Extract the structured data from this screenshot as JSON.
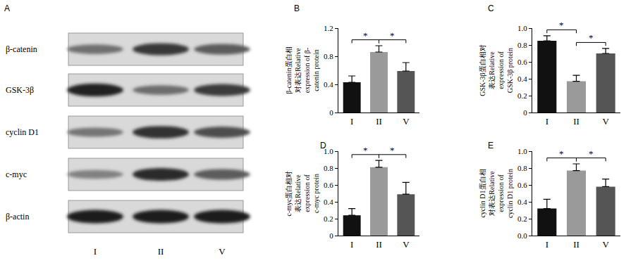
{
  "blot": {
    "title": "A",
    "rows": [
      "β-catenin",
      "GSK-3β",
      "cyclin D1",
      "c-myc",
      "β-actin"
    ],
    "lanes": [
      "I",
      "II",
      "V"
    ]
  },
  "chart_data": [
    {
      "type": "bar",
      "title": "B",
      "y_label": "β-catenin蛋白相\n对表达Relative\nexpression of β-\ncatenin protein",
      "categories": [
        "I",
        "II",
        "V"
      ],
      "values": [
        0.43,
        0.86,
        0.59
      ],
      "errors": [
        0.09,
        0.09,
        0.12
      ],
      "colors": [
        "#111111",
        "#9a9a9a",
        "#555555"
      ],
      "ylim": [
        0,
        1.2
      ],
      "yticks": [
        0,
        0.4,
        0.8,
        1.2
      ],
      "grid": false,
      "significance": [
        {
          "from": "I",
          "to": "II",
          "label": "*"
        },
        {
          "from": "II",
          "to": "V",
          "label": "*"
        }
      ]
    },
    {
      "type": "bar",
      "title": "C",
      "y_label": "GSK-3β蛋白相对\n表达Relative\nexpression of\nGSK-3β protein",
      "categories": [
        "I",
        "II",
        "V"
      ],
      "values": [
        0.85,
        0.37,
        0.7
      ],
      "errors": [
        0.06,
        0.07,
        0.06
      ],
      "colors": [
        "#111111",
        "#9a9a9a",
        "#555555"
      ],
      "ylim": [
        0,
        1
      ],
      "yticks": [
        0,
        0.2,
        0.4,
        0.6,
        0.8,
        {
          "value": 1,
          "label": "1.0"
        }
      ],
      "grid": false,
      "significance": [
        {
          "from": "I",
          "to": "II",
          "label": "*"
        },
        {
          "from": "II",
          "to": "V",
          "label": "*"
        }
      ]
    },
    {
      "type": "bar",
      "title": "D",
      "y_label": "c-myc蛋白相对\n表达Relative\nexpression of\nc-myc protein",
      "categories": [
        "I",
        "II",
        "V"
      ],
      "values": [
        0.24,
        0.81,
        0.49
      ],
      "errors": [
        0.08,
        0.08,
        0.14
      ],
      "colors": [
        "#111111",
        "#9a9a9a",
        "#555555"
      ],
      "ylim": [
        0,
        1
      ],
      "yticks": [
        0,
        0.2,
        0.4,
        0.6,
        0.8,
        {
          "value": 1,
          "label": "1.0"
        }
      ],
      "grid": false,
      "significance": [
        {
          "from": "I",
          "to": "II",
          "label": "*"
        },
        {
          "from": "II",
          "to": "V",
          "label": "*"
        }
      ]
    },
    {
      "type": "bar",
      "title": "E",
      "y_label": "cyclin D1蛋白相\n对表达Relative\nexpression of\ncyclin D1 protein",
      "categories": [
        "I",
        "II",
        "V"
      ],
      "values": [
        0.32,
        0.77,
        0.58
      ],
      "errors": [
        0.11,
        0.08,
        0.09
      ],
      "colors": [
        "#111111",
        "#9a9a9a",
        "#555555"
      ],
      "ylim": [
        0,
        1
      ],
      "yticks": [
        {
          "value": 0,
          "label": "0.0"
        },
        0.2,
        0.4,
        0.6,
        0.8,
        {
          "value": 1,
          "label": "1.0"
        }
      ],
      "grid": false,
      "significance": [
        {
          "from": "I",
          "to": "II",
          "label": "*"
        },
        {
          "from": "II",
          "to": "V",
          "label": "*"
        }
      ]
    }
  ]
}
